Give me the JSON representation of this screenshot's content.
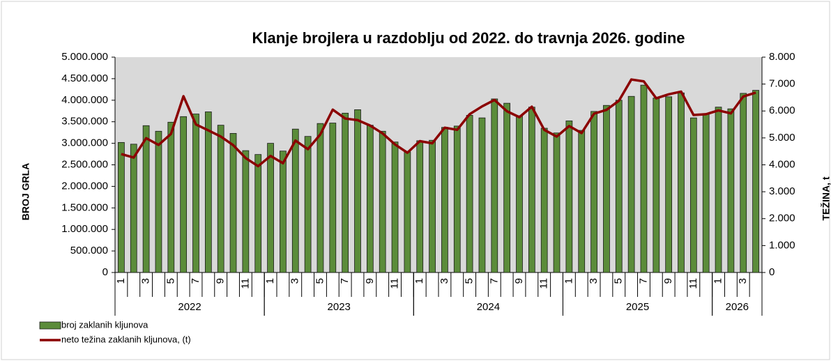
{
  "chart_data": {
    "type": "bar-line",
    "title": "Klanje brojlera u razdoblju od 2022. do travnja 2026. godine",
    "y_label": "BROJ GRLA",
    "y2_label": "TEŽINA, t",
    "categories": [
      "1",
      null,
      "3",
      null,
      "5",
      null,
      "7",
      null,
      "9",
      null,
      "11",
      null,
      "1",
      null,
      "3",
      null,
      "5",
      null,
      "7",
      null,
      "9",
      null,
      "11",
      null,
      "1",
      null,
      "3",
      null,
      "5",
      null,
      "7",
      null,
      "9",
      null,
      "11",
      null,
      "1",
      null,
      "3",
      null,
      "5",
      null,
      "7",
      null,
      "9",
      null,
      "11",
      null,
      "1",
      null,
      "3",
      null
    ],
    "groups": [
      {
        "name": "2022",
        "count": 12
      },
      {
        "name": "2023",
        "count": 12
      },
      {
        "name": "2024",
        "count": 12
      },
      {
        "name": "2025",
        "count": 12
      },
      {
        "name": "2026",
        "count": 4
      }
    ],
    "series": [
      {
        "name": "broj zaklanih kljunova",
        "type": "bar",
        "color": "#5b8c3a",
        "axis": "y",
        "values": [
          3020000,
          2980000,
          3410000,
          3280000,
          3490000,
          3620000,
          3680000,
          3730000,
          3420000,
          3230000,
          2830000,
          2740000,
          3000000,
          2820000,
          3330000,
          3160000,
          3460000,
          3470000,
          3700000,
          3780000,
          3420000,
          3280000,
          3030000,
          2800000,
          3060000,
          3070000,
          3370000,
          3400000,
          3650000,
          3590000,
          4030000,
          3930000,
          3640000,
          3840000,
          3350000,
          3240000,
          3520000,
          3300000,
          3740000,
          3880000,
          4000000,
          4090000,
          4350000,
          4050000,
          4080000,
          4170000,
          3590000,
          3690000,
          3840000,
          3800000,
          4160000,
          4230000
        ]
      },
      {
        "name": "neto težina zaklanih kljunova, (t)",
        "type": "line",
        "color": "#8b0000",
        "axis": "y2",
        "values": [
          4400,
          4270,
          4990,
          4740,
          5150,
          6550,
          5500,
          5280,
          5050,
          4730,
          4250,
          3950,
          4330,
          4060,
          4900,
          4580,
          5130,
          6050,
          5720,
          5660,
          5460,
          5170,
          4760,
          4450,
          4880,
          4800,
          5380,
          5300,
          5880,
          6170,
          6410,
          5990,
          5770,
          6160,
          5300,
          5050,
          5440,
          5180,
          5900,
          6040,
          6380,
          7170,
          7100,
          6470,
          6620,
          6720,
          5850,
          5880,
          6020,
          5910,
          6540,
          6680
        ]
      }
    ],
    "ylim": [
      0,
      5000000
    ],
    "yticks": [
      0,
      {
        "value": 500000,
        "label": "500.000"
      },
      {
        "value": 1000000,
        "label": "1.000.000"
      },
      {
        "value": 1500000,
        "label": "1.500.000"
      },
      {
        "value": 2000000,
        "label": "2.000.000"
      },
      {
        "value": 2500000,
        "label": "2.500.000"
      },
      {
        "value": 3000000,
        "label": "3.000.000"
      },
      {
        "value": 3500000,
        "label": "3.500.000"
      },
      {
        "value": 4000000,
        "label": "4.000.000"
      },
      {
        "value": 4500000,
        "label": "4.500.000"
      },
      {
        "value": 5000000,
        "label": "5.000.000"
      }
    ],
    "y2lim": [
      0,
      8000
    ],
    "y2ticks": [
      0,
      {
        "value": 1000,
        "label": "1.000"
      },
      {
        "value": 2000,
        "label": "2.000"
      },
      {
        "value": 3000,
        "label": "3.000"
      },
      {
        "value": 4000,
        "label": "4.000"
      },
      {
        "value": 5000,
        "label": "5.000"
      },
      {
        "value": 6000,
        "label": "6.000"
      },
      {
        "value": 7000,
        "label": "7.000"
      },
      {
        "value": 8000,
        "label": "8.000"
      }
    ],
    "grid": false,
    "legend": "bottom-left"
  }
}
